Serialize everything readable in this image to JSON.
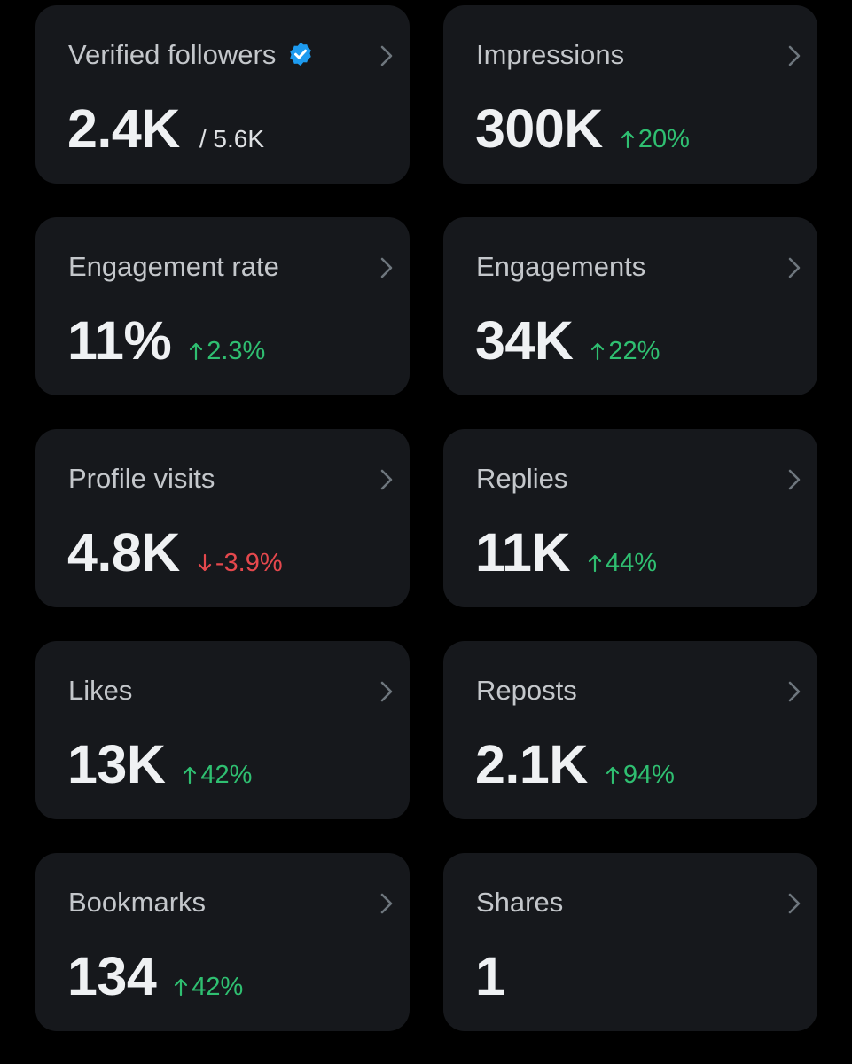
{
  "colors": {
    "background": "#000000",
    "card": "#16181c",
    "title_text": "#c4c7cb",
    "value_text": "#eff1f3",
    "up": "#2fbf71",
    "down": "#e5484d",
    "verified": "#1d9bf0"
  },
  "cards": [
    {
      "title": "Verified followers",
      "value": "2.4K",
      "sub": "/ 5.6K",
      "icon": "verified-badge-icon"
    },
    {
      "title": "Impressions",
      "value": "300K",
      "change": "20%",
      "direction": "up"
    },
    {
      "title": "Engagement rate",
      "value": "11%",
      "change": "2.3%",
      "direction": "up"
    },
    {
      "title": "Engagements",
      "value": "34K",
      "change": "22%",
      "direction": "up"
    },
    {
      "title": "Profile visits",
      "value": "4.8K",
      "change": "-3.9%",
      "direction": "down"
    },
    {
      "title": "Replies",
      "value": "11K",
      "change": "44%",
      "direction": "up"
    },
    {
      "title": "Likes",
      "value": "13K",
      "change": "42%",
      "direction": "up"
    },
    {
      "title": "Reposts",
      "value": "2.1K",
      "change": "94%",
      "direction": "up"
    },
    {
      "title": "Bookmarks",
      "value": "134",
      "change": "42%",
      "direction": "up"
    },
    {
      "title": "Shares",
      "value": "1"
    }
  ]
}
